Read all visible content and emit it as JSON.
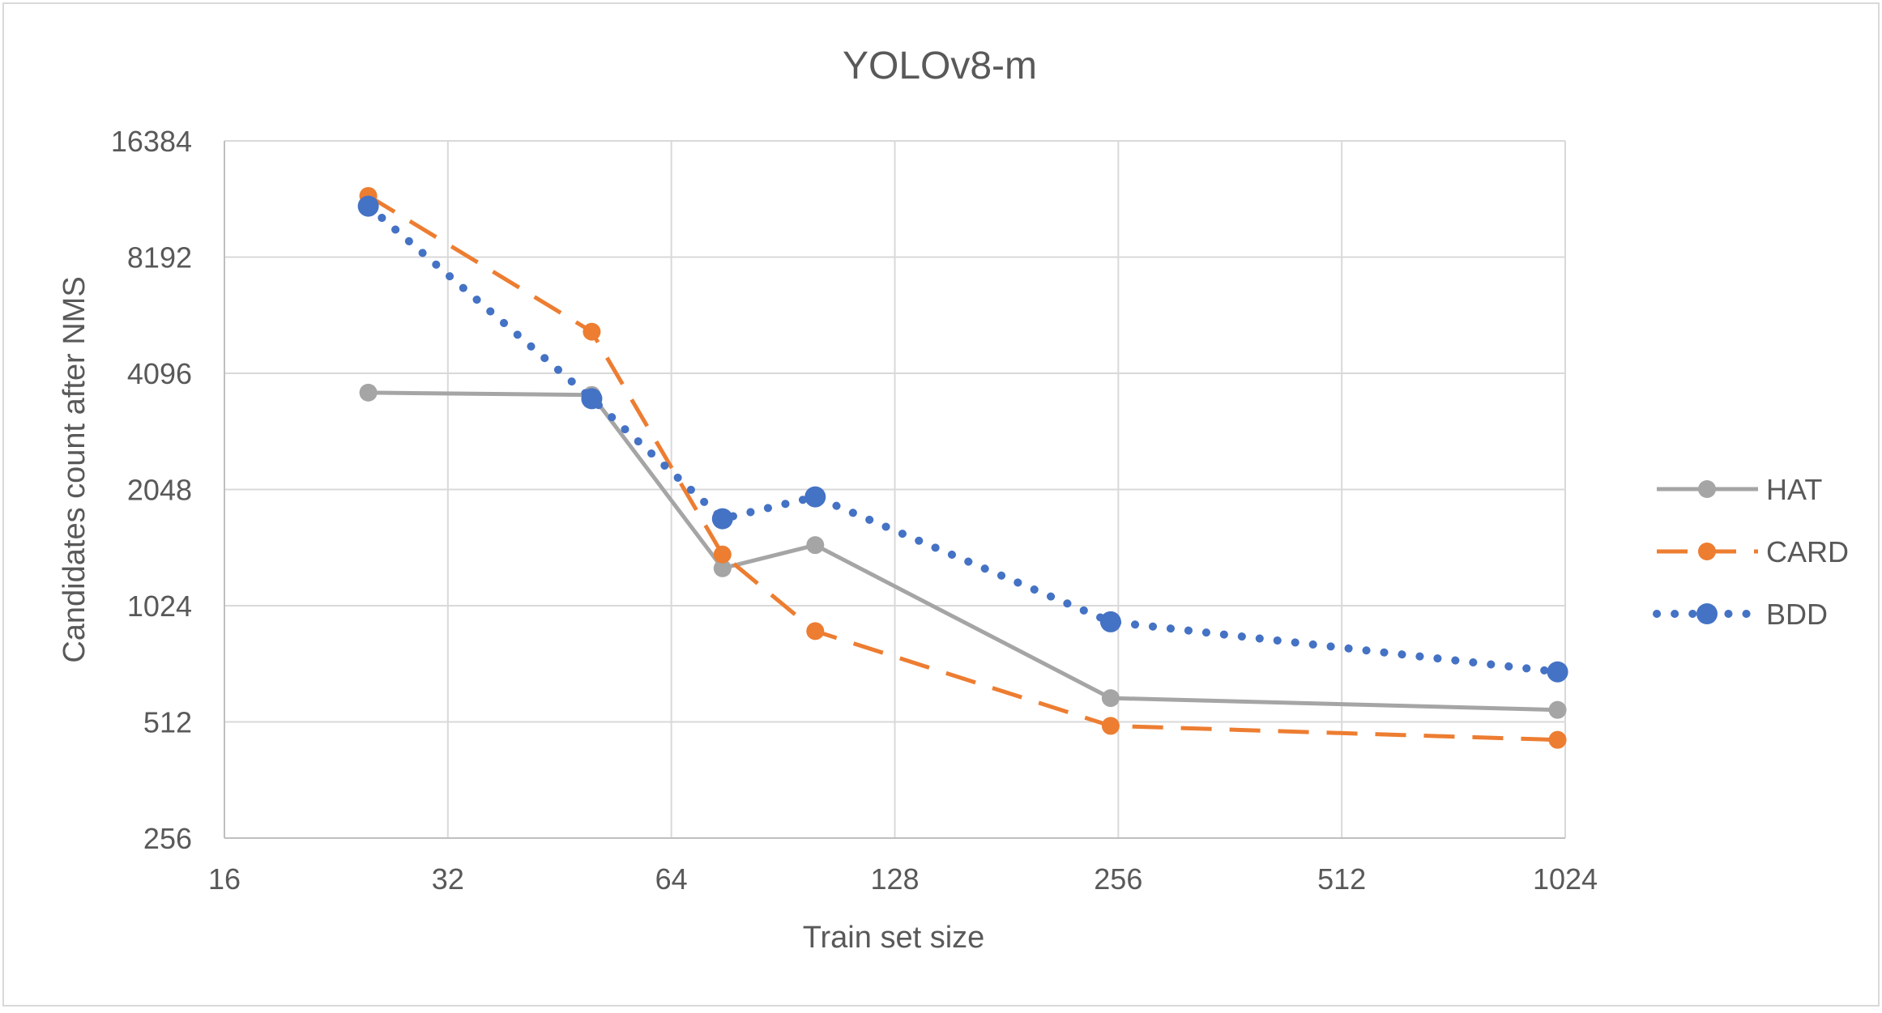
{
  "chart_data": {
    "type": "line",
    "title": "YOLOv8-m",
    "xlabel": "Train set size",
    "ylabel": "Candidates count after NMS",
    "x_scale": "log2",
    "y_scale": "log2",
    "xlim": [
      16,
      1024
    ],
    "ylim": [
      256,
      16384
    ],
    "x_ticks": [
      "16",
      "32",
      "64",
      "128",
      "256",
      "512",
      "1024"
    ],
    "y_ticks": [
      "256",
      "512",
      "1024",
      "2048",
      "4096",
      "8192",
      "16384"
    ],
    "grid": true,
    "legend_position": "right",
    "series": [
      {
        "name": "HAT",
        "color": "#A5A5A5",
        "line_style": "solid",
        "x": [
          25,
          50,
          75,
          100,
          250,
          1000
        ],
        "y": [
          3650,
          3600,
          1280,
          1470,
          590,
          550
        ]
      },
      {
        "name": "CARD",
        "color": "#ED7D31",
        "line_style": "dashed",
        "x": [
          25,
          50,
          75,
          100,
          250,
          1000
        ],
        "y": [
          11800,
          5250,
          1390,
          880,
          500,
          460
        ]
      },
      {
        "name": "BDD",
        "color": "#4472C4",
        "line_style": "dotted",
        "x": [
          25,
          50,
          75,
          100,
          250,
          1000
        ],
        "y": [
          11100,
          3520,
          1720,
          1960,
          930,
          690
        ]
      }
    ]
  }
}
